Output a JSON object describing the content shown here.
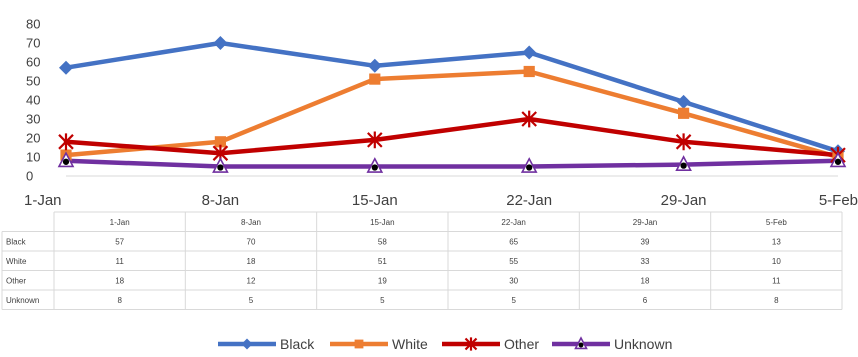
{
  "chart_data": {
    "type": "line",
    "title": "",
    "xlabel": "",
    "ylabel": "",
    "categories": [
      "1-Jan",
      "8-Jan",
      "15-Jan",
      "22-Jan",
      "29-Jan",
      "5-Feb"
    ],
    "y_ticks": [
      "0",
      "10",
      "20",
      "30",
      "40",
      "50",
      "60",
      "70",
      "80"
    ],
    "ylim": [
      0,
      80
    ],
    "grid": false,
    "legend_position": "bottom",
    "data_table": true,
    "series": [
      {
        "name": "Black",
        "values": [
          57,
          70,
          58,
          65,
          39,
          13
        ],
        "color": "#4472C4",
        "marker": "diamond"
      },
      {
        "name": "White",
        "values": [
          11,
          18,
          51,
          55,
          33,
          10
        ],
        "color": "#ED7D31",
        "marker": "square"
      },
      {
        "name": "Other",
        "values": [
          18,
          12,
          19,
          30,
          18,
          11
        ],
        "color": "#C00000",
        "marker": "star"
      },
      {
        "name": "Unknown",
        "values": [
          8,
          5,
          5,
          5,
          6,
          8
        ],
        "color": "#7030A0",
        "marker": "triangle"
      }
    ]
  }
}
